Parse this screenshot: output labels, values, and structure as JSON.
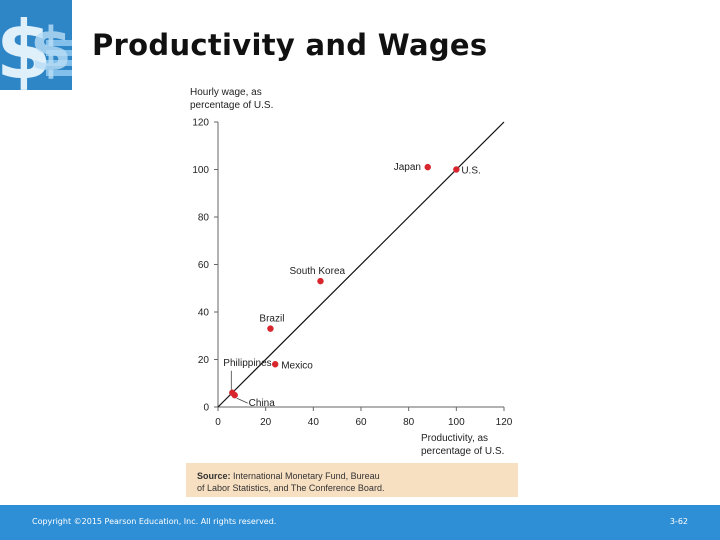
{
  "slide": {
    "title": "Productivity and Wages",
    "source_label": "Source:",
    "source_line1": " International Monetary Fund, Bureau",
    "source_line2": "of Labor Statistics, and The Conference Board.",
    "copyright": "Copyright ©2015 Pearson Education, Inc. All rights reserved.",
    "page": "3-62"
  },
  "colors": {
    "footer": "#2e8fd6",
    "logo": "#2f86c7",
    "points": "#d7262e",
    "source_bg": "#f7dfc2"
  },
  "chart_data": {
    "type": "scatter",
    "ylabel_line1": "Hourly wage, as",
    "ylabel_line2": "percentage of U.S.",
    "xlabel_line1": "Productivity, as",
    "xlabel_line2": "percentage of U.S.",
    "xlim": [
      0,
      120
    ],
    "ylim": [
      0,
      120
    ],
    "xticks": [
      0,
      20,
      40,
      60,
      80,
      100,
      120
    ],
    "yticks": [
      0,
      20,
      40,
      60,
      80,
      100,
      120
    ],
    "grid": false,
    "reference_line": [
      [
        0,
        0
      ],
      [
        120,
        120
      ]
    ],
    "points": [
      {
        "label": "Japan",
        "x": 88,
        "y": 101
      },
      {
        "label": "U.S.",
        "x": 100,
        "y": 100
      },
      {
        "label": "South Korea",
        "x": 43,
        "y": 53
      },
      {
        "label": "Brazil",
        "x": 22,
        "y": 33
      },
      {
        "label": "Mexico",
        "x": 24,
        "y": 18
      },
      {
        "label": "Philippines",
        "x": 6,
        "y": 6
      },
      {
        "label": "China",
        "x": 7,
        "y": 5
      }
    ]
  }
}
